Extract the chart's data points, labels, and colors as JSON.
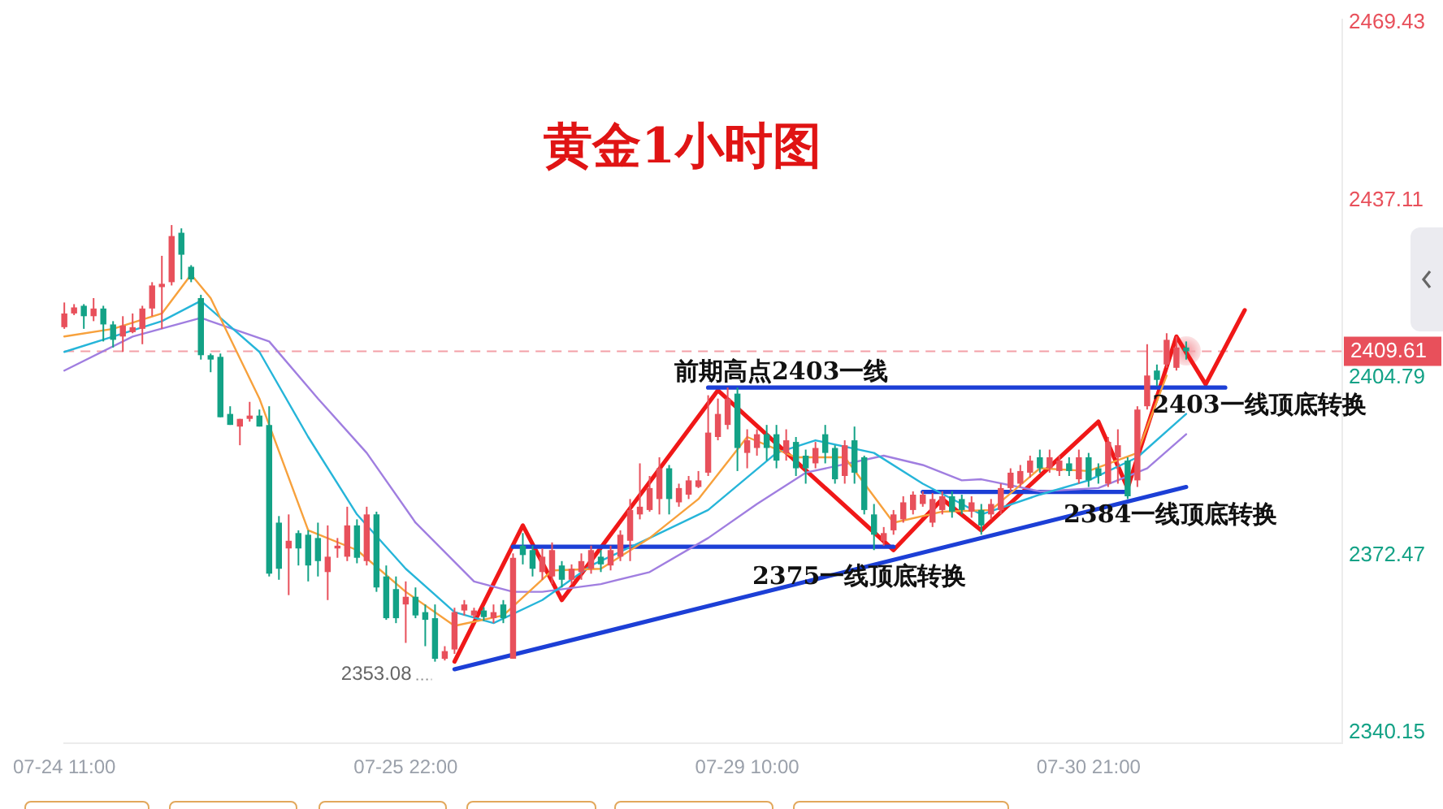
{
  "chart_data": {
    "type": "candlestick",
    "title": "黄金1小时图",
    "categories": [
      "07-24 11:00",
      null,
      null,
      null,
      null,
      null,
      null,
      null,
      null,
      null,
      null,
      null,
      null,
      null,
      null,
      null,
      null,
      null,
      null,
      null,
      null,
      null,
      null,
      null,
      null,
      null,
      null,
      null,
      null,
      null,
      null,
      null,
      null,
      null,
      null,
      "07-25 22:00",
      null,
      null,
      null,
      null,
      null,
      null,
      null,
      null,
      null,
      null,
      null,
      null,
      null,
      null,
      null,
      null,
      null,
      null,
      null,
      null,
      null,
      null,
      null,
      null,
      null,
      null,
      null,
      null,
      null,
      null,
      null,
      null,
      null,
      null,
      "07-29 10:00",
      null,
      null,
      null,
      null,
      null,
      null,
      null,
      null,
      null,
      null,
      null,
      null,
      null,
      null,
      null,
      null,
      null,
      null,
      null,
      null,
      null,
      null,
      null,
      null,
      null,
      null,
      null,
      null,
      null,
      null,
      null,
      null,
      null,
      null,
      "07-30 21:00",
      null,
      null,
      null,
      null,
      null,
      null,
      null,
      null,
      null,
      null,
      null,
      null,
      null,
      null,
      null,
      null,
      null,
      null,
      null,
      null,
      null,
      null,
      null,
      null,
      null,
      null
    ],
    "ohlc": [
      [
        2414.0,
        2418.5,
        2413.7,
        2416.5
      ],
      [
        2416.5,
        2418.2,
        2416.2,
        2417.6
      ],
      [
        2417.9,
        2418.2,
        2413.7,
        2416.0
      ],
      [
        2416.0,
        2419.3,
        2415.1,
        2417.4
      ],
      [
        2417.4,
        2417.9,
        2411.4,
        2414.5
      ],
      [
        2414.5,
        2415.1,
        2410.3,
        2411.7
      ],
      [
        2412.3,
        2416.0,
        2409.5,
        2414.3
      ],
      [
        2413.1,
        2416.5,
        2412.9,
        2414.0
      ],
      [
        2413.7,
        2417.9,
        2410.9,
        2417.4
      ],
      [
        2417.4,
        2422.2,
        2416.0,
        2421.6
      ],
      [
        2421.3,
        2427.0,
        2413.7,
        2421.9
      ],
      [
        2422.2,
        2432.6,
        2421.6,
        2430.6
      ],
      [
        2431.2,
        2432.0,
        2422.7,
        2427.2
      ],
      [
        2425.0,
        2425.3,
        2422.2,
        2422.7
      ],
      [
        2419.3,
        2419.9,
        2408.1,
        2408.9
      ],
      [
        2408.9,
        2409.2,
        2405.8,
        2408.1
      ],
      [
        2408.6,
        2409.2,
        2397.6,
        2397.6
      ],
      [
        2398.2,
        2399.6,
        2396.2,
        2396.2
      ],
      [
        2395.9,
        2397.3,
        2392.5,
        2397.3
      ],
      [
        2397.3,
        2400.4,
        2396.8,
        2397.9
      ],
      [
        2397.9,
        2399.0,
        2395.9,
        2395.9
      ],
      [
        2396.2,
        2399.6,
        2368.6,
        2369.1
      ],
      [
        2378.4,
        2379.6,
        2368.0,
        2370.0
      ],
      [
        2373.7,
        2379.9,
        2365.2,
        2375.1
      ],
      [
        2376.5,
        2377.0,
        2370.6,
        2373.7
      ],
      [
        2376.2,
        2377.0,
        2367.7,
        2370.6
      ],
      [
        2375.6,
        2378.4,
        2368.6,
        2371.4
      ],
      [
        2369.4,
        2377.9,
        2364.3,
        2372.2
      ],
      [
        2373.7,
        2375.6,
        2372.0,
        2374.2
      ],
      [
        2372.2,
        2381.3,
        2371.4,
        2377.9
      ],
      [
        2377.9,
        2379.0,
        2371.0,
        2372.0
      ],
      [
        2371.4,
        2381.3,
        2370.6,
        2379.9
      ],
      [
        2379.9,
        2380.4,
        2365.8,
        2366.6
      ],
      [
        2368.6,
        2370.6,
        2360.7,
        2361.0
      ],
      [
        2366.3,
        2368.6,
        2360.1,
        2361.0
      ],
      [
        2363.5,
        2367.7,
        2356.5,
        2364.9
      ],
      [
        2364.9,
        2366.6,
        2361.0,
        2361.5
      ],
      [
        2362.1,
        2363.5,
        2355.9,
        2360.7
      ],
      [
        2361.0,
        2363.5,
        2353.08,
        2353.6
      ],
      [
        2353.6,
        2355.9,
        2353.3,
        2355.0
      ],
      [
        2355.3,
        2362.9,
        2354.5,
        2362.1
      ],
      [
        2362.4,
        2364.3,
        2361.5,
        2363.5
      ],
      [
        2361.5,
        2362.9,
        2361.0,
        2362.4
      ],
      [
        2362.4,
        2363.0,
        2360.5,
        2361.2
      ],
      [
        2361.0,
        2363.5,
        2360.1,
        2362.1
      ],
      [
        2363.5,
        2364.3,
        2360.1,
        2361.0
      ],
      [
        2353.6,
        2372.8,
        2353.6,
        2372.0
      ],
      [
        2374.2,
        2376.5,
        2370.8,
        2372.5
      ],
      [
        2373.4,
        2374.2,
        2368.6,
        2370.0
      ],
      [
        2369.4,
        2373.7,
        2368.0,
        2372.2
      ],
      [
        2368.6,
        2374.8,
        2367.2,
        2373.4
      ],
      [
        2370.6,
        2371.4,
        2366.6,
        2368.0
      ],
      [
        2368.0,
        2370.8,
        2367.2,
        2370.0
      ],
      [
        2369.4,
        2372.8,
        2368.0,
        2371.4
      ],
      [
        2370.0,
        2374.2,
        2369.1,
        2373.4
      ],
      [
        2372.2,
        2373.4,
        2369.4,
        2370.8
      ],
      [
        2370.6,
        2374.2,
        2369.7,
        2373.4
      ],
      [
        2372.2,
        2377.0,
        2371.4,
        2376.2
      ],
      [
        2375.1,
        2382.7,
        2371.4,
        2380.7
      ],
      [
        2379.9,
        2389.2,
        2379.0,
        2381.3
      ],
      [
        2380.7,
        2386.9,
        2380.4,
        2384.7
      ],
      [
        2382.7,
        2390.3,
        2379.9,
        2388.3
      ],
      [
        2388.3,
        2388.9,
        2379.9,
        2382.7
      ],
      [
        2382.1,
        2385.5,
        2381.3,
        2384.7
      ],
      [
        2383.5,
        2386.9,
        2382.7,
        2386.1
      ],
      [
        2384.9,
        2387.8,
        2384.7,
        2386.1
      ],
      [
        2387.5,
        2401.6,
        2386.9,
        2394.8
      ],
      [
        2394.0,
        2401.0,
        2393.4,
        2398.2
      ],
      [
        2396.2,
        2403.0,
        2395.4,
        2401.0
      ],
      [
        2401.9,
        2403.0,
        2387.8,
        2392.0
      ],
      [
        2391.1,
        2395.4,
        2388.3,
        2393.4
      ],
      [
        2392.0,
        2395.4,
        2390.6,
        2394.5
      ],
      [
        2394.5,
        2396.2,
        2389.7,
        2392.0
      ],
      [
        2394.5,
        2396.2,
        2388.3,
        2389.7
      ],
      [
        2391.1,
        2395.4,
        2389.7,
        2393.4
      ],
      [
        2393.1,
        2394.0,
        2386.9,
        2388.3
      ],
      [
        2390.6,
        2391.7,
        2385.5,
        2388.3
      ],
      [
        2389.2,
        2393.1,
        2388.3,
        2392.0
      ],
      [
        2394.5,
        2396.2,
        2389.2,
        2391.1
      ],
      [
        2392.0,
        2392.5,
        2385.5,
        2386.3
      ],
      [
        2386.9,
        2393.4,
        2385.5,
        2392.5
      ],
      [
        2393.4,
        2395.9,
        2385.5,
        2387.5
      ],
      [
        2390.3,
        2390.6,
        2379.9,
        2380.7
      ],
      [
        2379.9,
        2381.8,
        2373.4,
        2376.2
      ],
      [
        2375.1,
        2377.6,
        2374.2,
        2376.5
      ],
      [
        2377.0,
        2380.7,
        2376.2,
        2379.9
      ],
      [
        2379.0,
        2383.2,
        2378.4,
        2382.1
      ],
      [
        2380.7,
        2384.1,
        2379.9,
        2383.5
      ],
      [
        2381.8,
        2384.1,
        2381.3,
        2383.5
      ],
      [
        2378.4,
        2383.8,
        2377.6,
        2382.7
      ],
      [
        2380.7,
        2384.1,
        2379.9,
        2383.2
      ],
      [
        2383.2,
        2384.1,
        2379.3,
        2380.4
      ],
      [
        2382.7,
        2383.5,
        2379.9,
        2380.7
      ],
      [
        2380.4,
        2383.2,
        2379.3,
        2382.1
      ],
      [
        2380.7,
        2381.8,
        2376.2,
        2377.9
      ],
      [
        2379.9,
        2382.7,
        2379.0,
        2381.8
      ],
      [
        2380.7,
        2385.5,
        2379.9,
        2384.7
      ],
      [
        2384.7,
        2388.3,
        2384.1,
        2387.5
      ],
      [
        2385.5,
        2388.9,
        2384.9,
        2387.8
      ],
      [
        2387.5,
        2390.6,
        2386.6,
        2389.7
      ],
      [
        2390.3,
        2391.7,
        2387.5,
        2388.3
      ],
      [
        2388.3,
        2391.7,
        2387.5,
        2390.3
      ],
      [
        2387.8,
        2390.6,
        2386.9,
        2389.7
      ],
      [
        2389.2,
        2390.3,
        2386.9,
        2387.8
      ],
      [
        2386.3,
        2391.7,
        2385.5,
        2390.3
      ],
      [
        2390.3,
        2391.1,
        2384.9,
        2386.1
      ],
      [
        2388.3,
        2389.2,
        2385.5,
        2386.9
      ],
      [
        2385.5,
        2394.0,
        2384.9,
        2393.1
      ],
      [
        2390.3,
        2395.4,
        2385.5,
        2392.5
      ],
      [
        2389.7,
        2390.3,
        2382.7,
        2383.2
      ],
      [
        2386.1,
        2399.6,
        2384.9,
        2399.0
      ],
      [
        2399.6,
        2410.9,
        2399.0,
        2405.2
      ],
      [
        2406.1,
        2407.2,
        2403.3,
        2404.4
      ],
      [
        2407.2,
        2412.9,
        2406.6,
        2411.7
      ],
      [
        2406.6,
        2412.3,
        2406.1,
        2410.3
      ],
      [
        2410.3,
        2411.4,
        2408.1,
        2409.61
      ],
      null,
      null,
      null,
      null,
      null,
      null,
      null,
      null,
      null,
      null,
      null,
      null,
      null,
      null,
      null,
      null
    ],
    "series": [
      {
        "type": "line",
        "color": "#f7a13c",
        "values": [
          2412.3,
          null,
          null,
          null,
          null,
          2413.7,
          null,
          null,
          null,
          null,
          2416.5,
          null,
          null,
          2423.6,
          null,
          2419.3,
          null,
          null,
          null,
          null,
          2401.0,
          null,
          null,
          null,
          null,
          2377.0,
          null,
          null,
          null,
          null,
          2373.4,
          null,
          null,
          null,
          null,
          2365.8,
          null,
          null,
          null,
          null,
          2359.6,
          null,
          null,
          null,
          null,
          2361.5,
          null,
          null,
          null,
          null,
          2369.7,
          null,
          null,
          null,
          null,
          2370.0,
          null,
          null,
          null,
          null,
          2375.6,
          null,
          null,
          null,
          null,
          2382.7,
          null,
          null,
          null,
          null,
          2394.0,
          null,
          null,
          null,
          null,
          2390.3,
          null,
          null,
          null,
          null,
          2390.3,
          null,
          null,
          null,
          null,
          2378.4,
          null,
          null,
          null,
          null,
          2380.4,
          null,
          null,
          null,
          null,
          2380.7,
          null,
          null,
          null,
          null,
          2388.3,
          null,
          null,
          null,
          null,
          2387.8,
          null,
          null,
          null,
          null,
          2391.1,
          null,
          null,
          2405.2,
          null,
          null,
          null,
          null,
          null,
          null,
          null,
          null,
          null,
          null,
          null,
          null,
          null,
          null,
          null,
          null,
          null,
          null
        ]
      },
      {
        "type": "line",
        "color": "#26b5d9",
        "values": [
          2409.5,
          null,
          null,
          null,
          null,
          2412.3,
          null,
          null,
          null,
          null,
          2415.1,
          null,
          null,
          null,
          2418.8,
          null,
          null,
          null,
          null,
          null,
          2409.5,
          null,
          null,
          null,
          null,
          2394.0,
          null,
          null,
          null,
          null,
          2379.9,
          null,
          null,
          null,
          null,
          2370.0,
          null,
          null,
          null,
          null,
          2362.1,
          null,
          null,
          null,
          2360.1,
          null,
          null,
          null,
          null,
          2364.3,
          null,
          null,
          null,
          null,
          2370.6,
          null,
          null,
          null,
          null,
          null,
          2375.6,
          null,
          null,
          null,
          null,
          null,
          2380.7,
          null,
          null,
          null,
          null,
          null,
          null,
          2391.1,
          null,
          null,
          null,
          2393.4,
          null,
          null,
          null,
          null,
          null,
          2391.1,
          null,
          null,
          null,
          null,
          2385.5,
          null,
          null,
          null,
          2381.8,
          null,
          2379.9,
          null,
          null,
          null,
          null,
          null,
          2383.5,
          null,
          null,
          null,
          null,
          2386.1,
          null,
          null,
          null,
          null,
          2390.3,
          null,
          null,
          null,
          null,
          2398.2,
          null,
          null,
          null,
          null,
          null,
          null,
          null,
          null,
          null,
          null,
          null,
          null,
          null,
          null,
          null,
          null
        ]
      },
      {
        "type": "line",
        "color": "#a07ee0",
        "values": [
          2406.1,
          null,
          null,
          null,
          null,
          null,
          null,
          2412.3,
          null,
          null,
          null,
          null,
          null,
          null,
          2415.7,
          null,
          null,
          null,
          null,
          null,
          null,
          2411.4,
          null,
          null,
          null,
          null,
          2401.0,
          null,
          null,
          null,
          null,
          2391.1,
          null,
          null,
          null,
          null,
          2378.4,
          null,
          null,
          null,
          null,
          null,
          2367.7,
          null,
          null,
          null,
          2365.8,
          null,
          null,
          2365.8,
          null,
          null,
          null,
          null,
          null,
          2367.2,
          null,
          null,
          null,
          null,
          2369.4,
          null,
          null,
          null,
          null,
          null,
          2375.6,
          null,
          null,
          null,
          null,
          2381.8,
          null,
          null,
          null,
          null,
          2387.5,
          null,
          null,
          null,
          null,
          null,
          null,
          null,
          2390.6,
          null,
          null,
          null,
          2388.9,
          null,
          null,
          null,
          2386.1,
          null,
          2386.3,
          null,
          null,
          null,
          null,
          null,
          2384.1,
          null,
          null,
          null,
          null,
          null,
          2384.7,
          null,
          null,
          null,
          null,
          2388.3,
          null,
          null,
          null,
          2394.5,
          null,
          null,
          null,
          null,
          null,
          null,
          null,
          null,
          null,
          null,
          null,
          null,
          null,
          null,
          null,
          null
        ]
      },
      {
        "type": "line",
        "color": "#1c3fd6",
        "values": [
          null,
          null,
          null,
          null,
          null,
          null,
          null,
          null,
          null,
          null,
          null,
          null,
          null,
          null,
          null,
          null,
          null,
          null,
          null,
          null,
          null,
          null,
          null,
          null,
          null,
          null,
          null,
          null,
          null,
          null,
          null,
          null,
          null,
          null,
          null,
          null,
          null,
          null,
          null,
          null,
          null,
          null,
          null,
          null,
          null,
          null,
          null,
          null,
          null,
          null,
          null,
          null,
          null,
          null,
          null,
          null,
          null,
          null,
          null,
          null,
          null,
          null,
          null,
          null,
          null,
          null,
          2403,
          null,
          null,
          null,
          null,
          null,
          null,
          null,
          null,
          null,
          null,
          null,
          null,
          null,
          null,
          null,
          null,
          null,
          null,
          null,
          null,
          null,
          null,
          null,
          null,
          null,
          null,
          null,
          null,
          null,
          null,
          null,
          null,
          null,
          null,
          null,
          null,
          null,
          null,
          null,
          null,
          null,
          null,
          null,
          null,
          null,
          null,
          null,
          null,
          null,
          null,
          null,
          null,
          2403,
          null,
          null,
          null,
          null,
          null,
          null,
          null,
          null,
          null,
          null,
          null,
          null
        ]
      },
      {
        "type": "line",
        "color": "#1c3fd6",
        "values": [
          null,
          null,
          null,
          null,
          null,
          null,
          null,
          null,
          null,
          null,
          null,
          null,
          null,
          null,
          null,
          null,
          null,
          null,
          null,
          null,
          null,
          null,
          null,
          null,
          null,
          null,
          null,
          null,
          null,
          null,
          null,
          null,
          null,
          null,
          null,
          null,
          null,
          null,
          null,
          null,
          null,
          null,
          null,
          null,
          null,
          null,
          2374,
          null,
          null,
          null,
          null,
          null,
          null,
          null,
          null,
          null,
          null,
          null,
          null,
          null,
          null,
          null,
          null,
          null,
          null,
          null,
          null,
          null,
          null,
          null,
          null,
          null,
          null,
          null,
          null,
          null,
          null,
          null,
          null,
          null,
          null,
          null,
          null,
          null,
          null,
          2374,
          null,
          null,
          null,
          null,
          null,
          null,
          null,
          null,
          null,
          null,
          null,
          null,
          null,
          null,
          null,
          null,
          null,
          null,
          null,
          null,
          null,
          null,
          null,
          null,
          null,
          null,
          null,
          null,
          null,
          null,
          null,
          null,
          null,
          null,
          null,
          null,
          null,
          null,
          null,
          null,
          null,
          null,
          null,
          null,
          null,
          null
        ]
      },
      {
        "type": "line",
        "color": "#1c3fd6",
        "values": [
          null,
          null,
          null,
          null,
          null,
          null,
          null,
          null,
          null,
          null,
          null,
          null,
          null,
          null,
          null,
          null,
          null,
          null,
          null,
          null,
          null,
          null,
          null,
          null,
          null,
          null,
          null,
          null,
          null,
          null,
          null,
          null,
          null,
          null,
          null,
          null,
          null,
          null,
          null,
          null,
          null,
          null,
          null,
          null,
          null,
          null,
          null,
          null,
          null,
          null,
          null,
          null,
          null,
          null,
          null,
          null,
          null,
          null,
          null,
          null,
          null,
          null,
          null,
          null,
          null,
          null,
          null,
          null,
          null,
          null,
          null,
          null,
          null,
          null,
          null,
          null,
          null,
          null,
          null,
          null,
          null,
          null,
          null,
          null,
          null,
          null,
          null,
          null,
          2384,
          null,
          null,
          null,
          null,
          null,
          null,
          null,
          null,
          null,
          null,
          null,
          null,
          null,
          null,
          null,
          null,
          null,
          null,
          null,
          null,
          2384,
          null,
          null,
          null,
          null,
          null,
          null,
          null,
          null,
          null,
          null,
          null,
          null,
          null,
          null,
          null,
          null,
          null,
          null,
          null,
          null,
          null,
          null
        ]
      },
      {
        "type": "line",
        "color": "#1c3fd6",
        "values": [
          null,
          null,
          null,
          null,
          null,
          null,
          null,
          null,
          null,
          null,
          null,
          null,
          null,
          null,
          null,
          null,
          null,
          null,
          null,
          null,
          null,
          null,
          null,
          null,
          null,
          null,
          null,
          null,
          null,
          null,
          null,
          null,
          null,
          null,
          null,
          null,
          null,
          null,
          null,
          null,
          2351.7,
          null,
          null,
          null,
          null,
          null,
          null,
          null,
          null,
          null,
          null,
          null,
          null,
          null,
          null,
          null,
          null,
          null,
          null,
          null,
          null,
          null,
          null,
          null,
          null,
          null,
          null,
          null,
          null,
          null,
          null,
          null,
          null,
          null,
          null,
          null,
          null,
          null,
          null,
          null,
          null,
          null,
          null,
          null,
          null,
          null,
          null,
          null,
          null,
          null,
          null,
          null,
          null,
          null,
          null,
          null,
          null,
          null,
          null,
          null,
          null,
          null,
          null,
          null,
          null,
          null,
          null,
          null,
          null,
          null,
          null,
          null,
          null,
          null,
          null,
          2384.9,
          null,
          null,
          null,
          null,
          null,
          null,
          null,
          null,
          null,
          null,
          null,
          null,
          null,
          null,
          null,
          null
        ]
      },
      {
        "type": "line",
        "color": "#f01818",
        "values": [
          null,
          null,
          null,
          null,
          null,
          null,
          null,
          null,
          null,
          null,
          null,
          null,
          null,
          null,
          null,
          null,
          null,
          null,
          null,
          null,
          null,
          null,
          null,
          null,
          null,
          null,
          null,
          null,
          null,
          null,
          null,
          null,
          null,
          null,
          null,
          null,
          null,
          null,
          null,
          null,
          2353.1,
          null,
          null,
          null,
          null,
          null,
          null,
          2377.9,
          null,
          null,
          null,
          2364.3,
          null,
          null,
          null,
          null,
          null,
          null,
          null,
          null,
          null,
          null,
          null,
          null,
          null,
          null,
          null,
          2402.5,
          null,
          null,
          null,
          null,
          null,
          null,
          null,
          null,
          null,
          null,
          null,
          null,
          null,
          null,
          null,
          null,
          null,
          2373.4,
          null,
          null,
          null,
          null,
          2382.7,
          null,
          null,
          null,
          2377.0,
          null,
          null,
          null,
          null,
          null,
          null,
          null,
          null,
          null,
          null,
          null,
          2396.8,
          null,
          null,
          2384.7,
          null,
          null,
          null,
          null,
          2412.3,
          null,
          null,
          2403.6,
          null,
          null,
          null,
          2417.1,
          null,
          null,
          null,
          null,
          null,
          null,
          null,
          null,
          null,
          null
        ]
      }
    ],
    "ylim": [
      2338.2,
      2470.1
    ],
    "yticks": [
      2340.15,
      2372.47,
      2404.79,
      2437.11,
      2469.43
    ],
    "ref_lines": [
      {
        "axis": "y",
        "value": 2409.61,
        "label": "2409.61",
        "color": "#f3a0a8",
        "line_style": "dashed"
      }
    ],
    "annotations": [
      {
        "text": "前期高点2403一线",
        "y": 2403
      },
      "2403一线顶底转换",
      {
        "text": "2375一线顶底转换",
        "y": 2374
      },
      {
        "text": "2384一线顶底转换",
        "y": 2384
      },
      "2353.08"
    ],
    "marker": "none"
  }
}
